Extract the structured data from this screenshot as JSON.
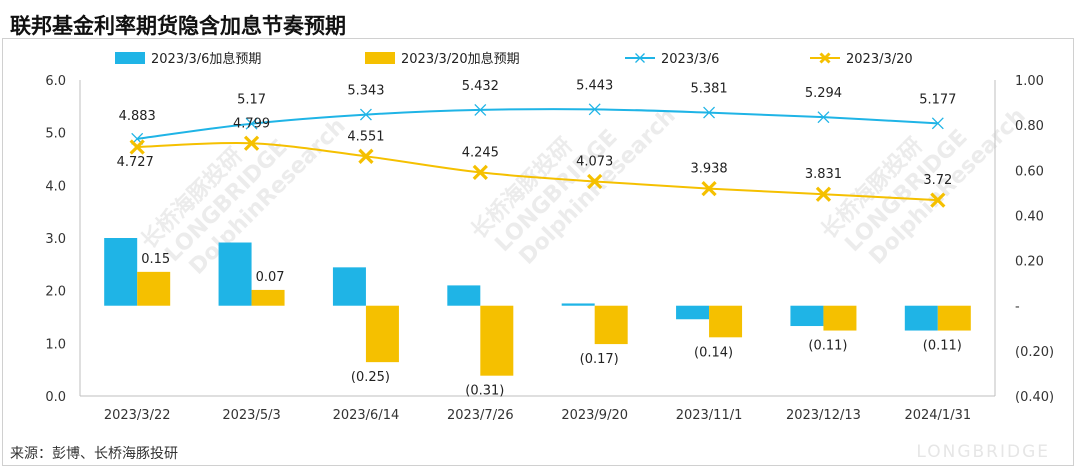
{
  "title": "联邦基金利率期货隐含加息节奏预期",
  "source": "来源：彭博、长桥海豚投研",
  "brand": "LONGBRIDGE",
  "colors": {
    "blue": "#1fb4e6",
    "yellow": "#f5c000",
    "axis": "#bfbfbf"
  },
  "chart_data": {
    "type": "bar+line",
    "categories": [
      "2023/3/22",
      "2023/5/3",
      "2023/6/14",
      "2023/7/26",
      "2023/9/20",
      "2023/11/1",
      "2023/12/13",
      "2024/1/31"
    ],
    "series": [
      {
        "name": "2023/3/6加息预期",
        "kind": "bar",
        "axis": "right",
        "color": "#1fb4e6",
        "values": [
          0.3,
          0.28,
          0.17,
          0.09,
          0.01,
          -0.06,
          -0.09,
          -0.11
        ]
      },
      {
        "name": "2023/3/20加息预期",
        "kind": "bar",
        "axis": "right",
        "color": "#f5c000",
        "values": [
          0.15,
          0.07,
          -0.25,
          -0.31,
          -0.17,
          -0.14,
          -0.11,
          -0.11
        ],
        "labels": [
          "0.15",
          "0.07",
          "(0.25)",
          "(0.31)",
          "(0.17)",
          "(0.14)",
          "(0.11)",
          "(0.11)"
        ]
      },
      {
        "name": "2023/3/6",
        "kind": "line",
        "axis": "left",
        "color": "#1fb4e6",
        "values": [
          4.883,
          5.17,
          5.343,
          5.432,
          5.443,
          5.381,
          5.294,
          5.177
        ],
        "labels": [
          "4.883",
          "5.17",
          "5.343",
          "5.432",
          "5.443",
          "5.381",
          "5.294",
          "5.177"
        ]
      },
      {
        "name": "2023/3/20",
        "kind": "line",
        "axis": "left",
        "color": "#f5c000",
        "values": [
          4.727,
          4.799,
          4.551,
          4.245,
          4.073,
          3.938,
          3.831,
          3.72
        ],
        "labels": [
          "4.727",
          "4.799",
          "4.551",
          "4.245",
          "4.073",
          "3.938",
          "3.831",
          "3.72"
        ]
      }
    ],
    "left_axis": {
      "min": 0,
      "max": 6,
      "ticks": [
        "0.0",
        "1.0",
        "2.0",
        "3.0",
        "4.0",
        "5.0",
        "6.0"
      ]
    },
    "right_axis": {
      "min": -0.4,
      "max": 1.0,
      "ticks": [
        "(0.40)",
        "(0.20)",
        "-",
        "0.20",
        "0.40",
        "0.60",
        "0.80",
        "1.00"
      ]
    },
    "legend": [
      "2023/3/6加息预期",
      "2023/3/20加息预期",
      "2023/3/6",
      "2023/3/20"
    ],
    "watermark": [
      "长桥海豚投研",
      "LONGBRIDGE",
      "DolphinResearch"
    ]
  }
}
